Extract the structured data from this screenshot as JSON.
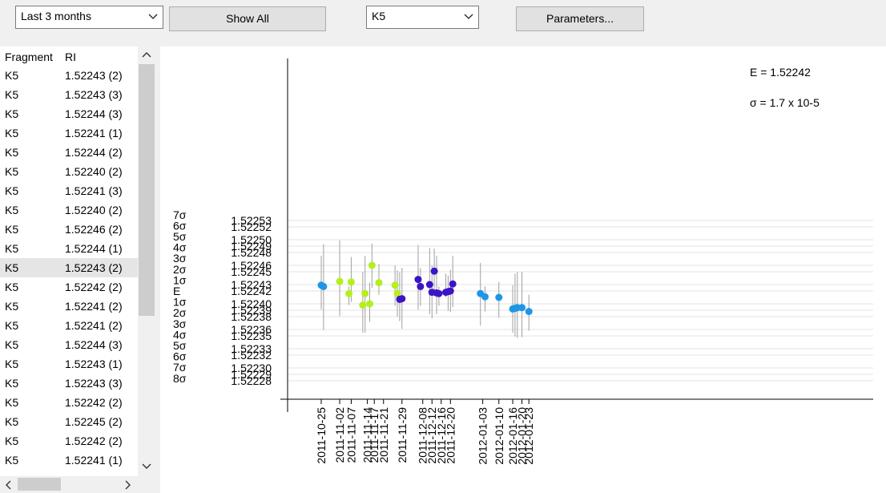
{
  "toolbar": {
    "period_select": "Last 3 months",
    "show_all_label": "Show All",
    "fragment_select": "K5",
    "parameters_label": "Parameters..."
  },
  "list": {
    "headers": [
      "Fragment",
      "RI"
    ],
    "selected_index": 10,
    "rows": [
      [
        "K5",
        "1.52243 (2)"
      ],
      [
        "K5",
        "1.52243 (3)"
      ],
      [
        "K5",
        "1.52244 (3)"
      ],
      [
        "K5",
        "1.52241 (1)"
      ],
      [
        "K5",
        "1.52244 (2)"
      ],
      [
        "K5",
        "1.52240 (2)"
      ],
      [
        "K5",
        "1.52241 (3)"
      ],
      [
        "K5",
        "1.52240 (2)"
      ],
      [
        "K5",
        "1.52246 (2)"
      ],
      [
        "K5",
        "1.52244 (1)"
      ],
      [
        "K5",
        "1.52243 (2)"
      ],
      [
        "K5",
        "1.52242 (2)"
      ],
      [
        "K5",
        "1.52241 (2)"
      ],
      [
        "K5",
        "1.52241 (2)"
      ],
      [
        "K5",
        "1.52244 (3)"
      ],
      [
        "K5",
        "1.52243 (1)"
      ],
      [
        "K5",
        "1.52243 (3)"
      ],
      [
        "K5",
        "1.52242 (2)"
      ],
      [
        "K5",
        "1.52245 (2)"
      ],
      [
        "K5",
        "1.52242 (2)"
      ],
      [
        "K5",
        "1.52241 (1)"
      ]
    ]
  },
  "chart_data": {
    "type": "scatter",
    "mean_text": "E = 1.52242",
    "sigma_text": "σ = 1.7 x 10-5",
    "mean": 1.52242,
    "sigma": 1.7e-05,
    "sigma_labels": [
      "7σ",
      "6σ",
      "5σ",
      "4σ",
      "3σ",
      "2σ",
      "1σ",
      "E",
      "1σ",
      "2σ",
      "3σ",
      "4σ",
      "5σ",
      "6σ",
      "7σ",
      "8σ"
    ],
    "y_ticks": [
      "1.52253",
      "1.52252",
      "1.52250",
      "1.52249",
      "1.52248",
      "1.52246",
      "1.52245",
      "1.52243",
      "1.52242",
      "1.52240",
      "1.52239",
      "1.52238",
      "1.52236",
      "1.52235",
      "1.52233",
      "1.52232",
      "1.52230",
      "1.52229",
      "1.52228"
    ],
    "ylim": [
      1.52227,
      1.52254
    ],
    "x_ticks": [
      "2011-10-25",
      "2011-11-02",
      "2011-11-07",
      "2011-11-14",
      "2011-11-17",
      "2011-11-21",
      "2011-11-29",
      "2011-12-08",
      "2011-12-12",
      "2011-12-16",
      "2011-12-20",
      "2012-01-03",
      "2012-01-10",
      "2012-01-16",
      "2012-01-20",
      "2012-01-23"
    ],
    "xlim": [
      "2011-10-20",
      "2012-01-26"
    ],
    "colors": {
      "group1": "#1e96e6",
      "group2": "#b4ef1e",
      "group3": "#3c14c8",
      "errorbar": "#a0a0a0"
    },
    "points": [
      {
        "x": "2011-10-25",
        "y": 1.522429,
        "lo": 1.522391,
        "hi": 1.522475,
        "g": 1
      },
      {
        "x": "2011-10-26",
        "y": 1.522427,
        "lo": 1.522359,
        "hi": 1.522493,
        "g": 1
      },
      {
        "x": "2011-11-02",
        "y": 1.522435,
        "lo": 1.522381,
        "hi": 1.522499,
        "g": 2
      },
      {
        "x": "2011-11-06",
        "y": 1.522416,
        "lo": 1.522398,
        "hi": 1.522427,
        "g": 2
      },
      {
        "x": "2011-11-07",
        "y": 1.522434,
        "lo": 1.522403,
        "hi": 1.522473,
        "g": 2
      },
      {
        "x": "2011-11-12",
        "y": 1.522398,
        "lo": 1.522355,
        "hi": 1.52245,
        "g": 2
      },
      {
        "x": "2011-11-13",
        "y": 1.522416,
        "lo": 1.522355,
        "hi": 1.522475,
        "g": 2
      },
      {
        "x": "2011-11-15",
        "y": 1.5224,
        "lo": 1.522372,
        "hi": 1.522433,
        "g": 2
      },
      {
        "x": "2011-11-16",
        "y": 1.52246,
        "lo": 1.522425,
        "hi": 1.522494,
        "g": 2
      },
      {
        "x": "2011-11-19",
        "y": 1.522433,
        "lo": 1.522414,
        "hi": 1.522462,
        "g": 2
      },
      {
        "x": "2011-11-26",
        "y": 1.522429,
        "lo": 1.522397,
        "hi": 1.52246,
        "g": 2
      },
      {
        "x": "2011-11-27",
        "y": 1.522416,
        "lo": 1.52238,
        "hi": 1.522452,
        "g": 2
      },
      {
        "x": "2011-11-28",
        "y": 1.522407,
        "lo": 1.522373,
        "hi": 1.522449,
        "g": 3
      },
      {
        "x": "2011-11-29",
        "y": 1.522408,
        "lo": 1.522361,
        "hi": 1.522456,
        "g": 3
      },
      {
        "x": "2011-12-06",
        "y": 1.522438,
        "lo": 1.522391,
        "hi": 1.522492,
        "g": 3
      },
      {
        "x": "2011-12-07",
        "y": 1.522427,
        "lo": 1.522397,
        "hi": 1.522456,
        "g": 3
      },
      {
        "x": "2011-12-11",
        "y": 1.52243,
        "lo": 1.522384,
        "hi": 1.522487,
        "g": 3
      },
      {
        "x": "2011-12-12",
        "y": 1.522418,
        "lo": 1.522377,
        "hi": 1.52246,
        "g": 3
      },
      {
        "x": "2011-12-13",
        "y": 1.522451,
        "lo": 1.522414,
        "hi": 1.522486,
        "g": 3
      },
      {
        "x": "2011-12-14",
        "y": 1.522417,
        "lo": 1.522384,
        "hi": 1.522475,
        "g": 3
      },
      {
        "x": "2011-12-15",
        "y": 1.522416,
        "lo": 1.522397,
        "hi": 1.522427,
        "g": 3
      },
      {
        "x": "2011-12-18",
        "y": 1.522418,
        "lo": 1.52241,
        "hi": 1.522447,
        "g": 3
      },
      {
        "x": "2011-12-19",
        "y": 1.522419,
        "lo": 1.522389,
        "hi": 1.522444,
        "g": 3
      },
      {
        "x": "2011-12-20",
        "y": 1.52242,
        "lo": 1.522387,
        "hi": 1.522453,
        "g": 3
      },
      {
        "x": "2011-12-21",
        "y": 1.522431,
        "lo": 1.522395,
        "hi": 1.522475,
        "g": 3
      },
      {
        "x": "2012-01-02",
        "y": 1.522416,
        "lo": 1.522366,
        "hi": 1.522464,
        "g": 1
      },
      {
        "x": "2012-01-04",
        "y": 1.522411,
        "lo": 1.522388,
        "hi": 1.522427,
        "g": 1
      },
      {
        "x": "2012-01-10",
        "y": 1.52241,
        "lo": 1.522378,
        "hi": 1.522434,
        "g": 1
      },
      {
        "x": "2012-01-16",
        "y": 1.522392,
        "lo": 1.522355,
        "hi": 1.522429,
        "g": 1
      },
      {
        "x": "2012-01-17",
        "y": 1.522393,
        "lo": 1.522349,
        "hi": 1.522447,
        "g": 1
      },
      {
        "x": "2012-01-18",
        "y": 1.522394,
        "lo": 1.522347,
        "hi": 1.52245,
        "g": 1
      },
      {
        "x": "2012-01-20",
        "y": 1.522394,
        "lo": 1.522348,
        "hi": 1.52245,
        "g": 1
      },
      {
        "x": "2012-01-23",
        "y": 1.522388,
        "lo": 1.522358,
        "hi": 1.522414,
        "g": 1
      }
    ]
  }
}
